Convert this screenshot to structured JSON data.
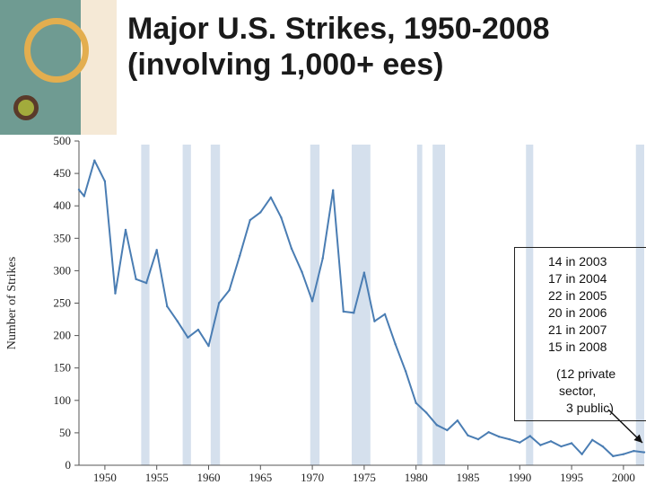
{
  "slide": {
    "title_line1": "Major U.S. Strikes, 1950-2008",
    "title_line2": "(involving 1,000+ ees)"
  },
  "annotation": {
    "lines": [
      "14 in 2003",
      "17 in 2004",
      "22 in 2005",
      "20 in 2006",
      "21 in 2007",
      "15 in 2008"
    ],
    "note_lines": [
      "(12 private",
      "sector,",
      "3 public)"
    ]
  },
  "colors": {
    "line": "#4a7db3",
    "band": "#d5e0ed",
    "axis": "#555555",
    "text": "#222222"
  },
  "chart_data": {
    "type": "line",
    "title": "",
    "xlabel": "",
    "ylabel": "Number of Strikes",
    "xlim": [
      1947.5,
      2002
    ],
    "ylim": [
      0,
      500
    ],
    "xticks": [
      1950,
      1955,
      1960,
      1965,
      1970,
      1975,
      1980,
      1985,
      1990,
      1995,
      2000
    ],
    "yticks": [
      0,
      50,
      100,
      150,
      200,
      250,
      300,
      350,
      400,
      450,
      500
    ],
    "grid": false,
    "shaded_periods": [
      [
        1953.5,
        1954.3
      ],
      [
        1957.5,
        1958.3
      ],
      [
        1960.2,
        1961.1
      ],
      [
        1969.8,
        1970.7
      ],
      [
        1973.8,
        1975.6
      ],
      [
        1980.1,
        1980.6
      ],
      [
        1981.6,
        1982.8
      ],
      [
        1990.6,
        1991.3
      ],
      [
        2001.2,
        2002
      ]
    ],
    "series": [
      {
        "x": [
          1947.5,
          1948,
          1949,
          1950,
          1951,
          1952,
          1953,
          1954,
          1955,
          1956,
          1957,
          1958,
          1959,
          1960,
          1961,
          1962,
          1963,
          1964,
          1965,
          1966,
          1967,
          1968,
          1969,
          1970,
          1971,
          1972,
          1973,
          1974,
          1975,
          1976,
          1977,
          1978,
          1979,
          1980,
          1981,
          1982,
          1983,
          1984,
          1985,
          1986,
          1987,
          1988,
          1989,
          1990,
          1991,
          1992,
          1993,
          1994,
          1995,
          1996,
          1997,
          1998,
          1999,
          2000,
          2001,
          2002
        ],
        "values": [
          425,
          415,
          470,
          438,
          265,
          363,
          287,
          281,
          332,
          245,
          222,
          197,
          209,
          184,
          250,
          270,
          323,
          378,
          390,
          413,
          382,
          334,
          298,
          253,
          319,
          424,
          237,
          235,
          297,
          222,
          233,
          187,
          145,
          96,
          81,
          62,
          54,
          69,
          46,
          40,
          51,
          44,
          40,
          35,
          45,
          31,
          37,
          29,
          34,
          17,
          39,
          29,
          14,
          17,
          22,
          20
        ]
      }
    ]
  }
}
